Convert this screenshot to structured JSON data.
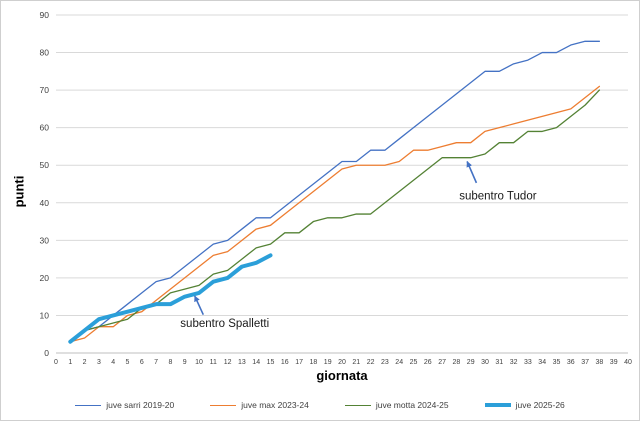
{
  "chart_data": {
    "type": "line",
    "title": "",
    "xlabel": "giornata",
    "ylabel": "punti",
    "xlim": [
      0,
      40
    ],
    "ylim": [
      0,
      90
    ],
    "x_tick_step": 1,
    "y_tick_step": 10,
    "grid": "horizontal",
    "legend_position": "bottom",
    "x_start": 1,
    "colors": {
      "gridline": "#d9d9d9",
      "axis": "#bfbfbf",
      "tick_label": "#404040",
      "annotation_arrow": "#4472c4"
    },
    "series": [
      {
        "name": "juve sarri 2019-20",
        "color": "#4472c4",
        "width": 1.3,
        "values": [
          3,
          6,
          7,
          10,
          13,
          16,
          19,
          20,
          23,
          26,
          29,
          30,
          33,
          36,
          36,
          39,
          42,
          45,
          48,
          51,
          51,
          54,
          54,
          57,
          60,
          63,
          66,
          69,
          72,
          75,
          75,
          77,
          78,
          80,
          80,
          82,
          83,
          83
        ]
      },
      {
        "name": "juve max 2023-24",
        "color": "#ed7d31",
        "width": 1.3,
        "values": [
          3,
          4,
          7,
          7,
          10,
          11,
          14,
          17,
          20,
          23,
          26,
          27,
          30,
          33,
          34,
          37,
          40,
          43,
          46,
          49,
          50,
          50,
          50,
          51,
          54,
          54,
          55,
          56,
          56,
          59,
          60,
          61,
          62,
          63,
          64,
          65,
          68,
          71
        ]
      },
      {
        "name": "juve motta 2024-25",
        "color": "#548235",
        "width": 1.3,
        "values": [
          3,
          6,
          7,
          8,
          9,
          12,
          13,
          16,
          17,
          18,
          21,
          22,
          25,
          28,
          29,
          32,
          32,
          35,
          36,
          36,
          37,
          37,
          40,
          43,
          46,
          49,
          52,
          52,
          52,
          53,
          56,
          56,
          59,
          59,
          60,
          63,
          66,
          70
        ]
      },
      {
        "name": "juve 2025-26",
        "color": "#2b9fd9",
        "width": 4,
        "values": [
          3,
          6,
          9,
          10,
          11,
          12,
          13,
          13,
          15,
          16,
          19,
          20,
          23,
          24,
          26
        ]
      }
    ],
    "annotations": [
      {
        "text": "subentro Spalletti",
        "x": 11.8,
        "y": 8,
        "arrow_from": [
          10.3,
          10.2
        ],
        "arrow_to": [
          9.7,
          15.2
        ],
        "color": "#4472c4"
      },
      {
        "text": "subentro Tudor",
        "x": 30.9,
        "y": 42,
        "arrow_from": [
          29.4,
          45.3
        ],
        "arrow_to": [
          28.75,
          51
        ],
        "color": "#4472c4"
      }
    ]
  }
}
